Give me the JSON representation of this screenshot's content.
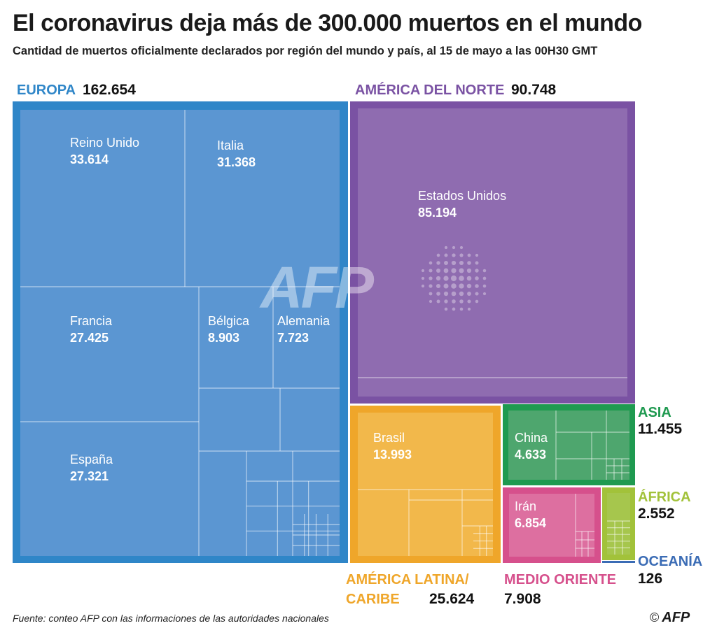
{
  "title": "El coronavirus deja más de 300.000 muertos en el mundo",
  "subtitle": "Cantidad de muertos oficialmente declarados por región del mundo y país, al 15 de mayo a las 00H30 GMT",
  "source": "Fuente: conteo AFP con las informaciones de las autoridades nacionales",
  "credit": {
    "copyright": "©",
    "agency": "AFP"
  },
  "watermark": "AFP",
  "colors": {
    "europa": "#5b96d2",
    "europa_border": "#2f86c8",
    "america_norte": "#8f6cb0",
    "america_norte_border": "#7a52a3",
    "america_latina": "#f2b84b",
    "america_latina_border": "#efa62a",
    "asia": "#4ea66e",
    "asia_border": "#1f9a50",
    "medio_oriente": "#dd6fa0",
    "medio_oriente_border": "#d6508c",
    "africa": "#a6c64d",
    "africa_border": "#a2c23a",
    "oceania": "#3b6cb5"
  },
  "chart_data": {
    "type": "treemap",
    "regions": [
      {
        "name": "EUROPA",
        "value": 162654,
        "countries": [
          {
            "name": "Reino Unido",
            "value": 33614
          },
          {
            "name": "Italia",
            "value": 31368
          },
          {
            "name": "Francia",
            "value": 27425
          },
          {
            "name": "España",
            "value": 27321
          },
          {
            "name": "Bélgica",
            "value": 8903
          },
          {
            "name": "Alemania",
            "value": 7723
          }
        ]
      },
      {
        "name": "AMÉRICA DEL NORTE",
        "value": 90748,
        "countries": [
          {
            "name": "Estados Unidos",
            "value": 85194
          }
        ]
      },
      {
        "name": "AMÉRICA LATINA/ CARIBE",
        "value": 25624,
        "countries": [
          {
            "name": "Brasil",
            "value": 13993
          }
        ]
      },
      {
        "name": "ASIA",
        "value": 11455,
        "countries": [
          {
            "name": "China",
            "value": 4633
          }
        ]
      },
      {
        "name": "MEDIO ORIENTE",
        "value": 7908,
        "countries": [
          {
            "name": "Irán",
            "value": 6854
          }
        ]
      },
      {
        "name": "ÁFRICA",
        "value": 2552,
        "countries": []
      },
      {
        "name": "OCEANÍA",
        "value": 126,
        "countries": []
      }
    ]
  }
}
